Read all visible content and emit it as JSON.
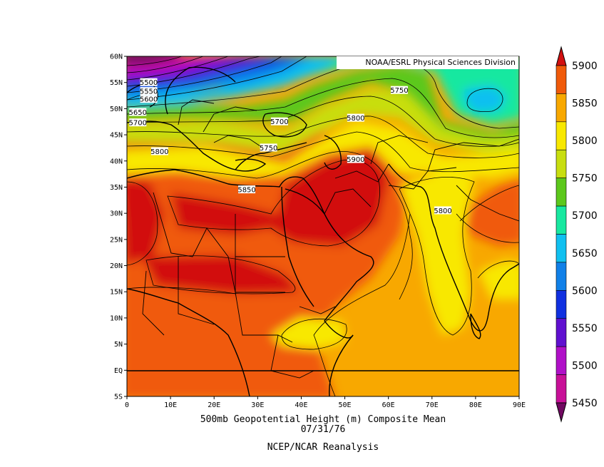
{
  "map": {
    "credit": "NOAA/ESRL Physical Sciences Division",
    "title": "500mb Geopotential Height (m) Composite Mean",
    "date": "07/31/76",
    "source": "NCEP/NCAR Reanalysis",
    "lat_ticks": [
      "60N",
      "55N",
      "50N",
      "45N",
      "40N",
      "35N",
      "30N",
      "25N",
      "20N",
      "15N",
      "10N",
      "5N",
      "EQ",
      "5S"
    ],
    "lon_ticks": [
      "0",
      "10E",
      "20E",
      "30E",
      "40E",
      "50E",
      "60E",
      "70E",
      "80E",
      "90E"
    ],
    "lat_range": [
      -5,
      60
    ],
    "lon_range": [
      0,
      90
    ],
    "colorbar": {
      "levels": [
        "5900",
        "5850",
        "5800",
        "5750",
        "5700",
        "5650",
        "5600",
        "5550",
        "5500",
        "5450"
      ],
      "colors": [
        "#d21010",
        "#f05a0a",
        "#f8a800",
        "#f8e800",
        "#c8de10",
        "#5cc81c",
        "#18e8a0",
        "#10c0f0",
        "#1080e8",
        "#1030e0",
        "#6010d0",
        "#b010c8",
        "#c81098",
        "#700860"
      ]
    },
    "contour_labels": [
      {
        "text": "5500",
        "lon": 5,
        "lat": 55
      },
      {
        "text": "5550",
        "lon": 5,
        "lat": 53.3
      },
      {
        "text": "5600",
        "lon": 5,
        "lat": 51.8
      },
      {
        "text": "5650",
        "lon": 2.5,
        "lat": 49.3
      },
      {
        "text": "5700",
        "lon": 2.5,
        "lat": 47.3
      },
      {
        "text": "5800",
        "lon": 7.5,
        "lat": 41.8
      },
      {
        "text": "5700",
        "lon": 35,
        "lat": 47.5
      },
      {
        "text": "5750",
        "lon": 32.5,
        "lat": 42.5
      },
      {
        "text": "5850",
        "lon": 27.5,
        "lat": 34.5
      },
      {
        "text": "5750",
        "lon": 62.5,
        "lat": 53.5
      },
      {
        "text": "5800",
        "lon": 52.5,
        "lat": 48.2
      },
      {
        "text": "5900",
        "lon": 52.5,
        "lat": 40.3
      },
      {
        "text": "5800",
        "lon": 72.5,
        "lat": 30.5
      }
    ]
  }
}
